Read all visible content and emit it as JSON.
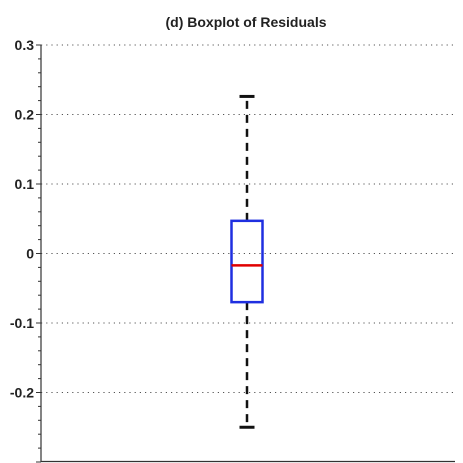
{
  "chart_data": {
    "type": "box",
    "title": "(d) Boxplot of Residuals",
    "xlabel": "",
    "ylabel": "",
    "ylim": [
      -0.3,
      0.3
    ],
    "yticks": [
      -0.2,
      -0.1,
      0,
      0.1,
      0.2,
      0.3
    ],
    "ytick_labels": [
      "-0.2",
      "-0.1",
      "0",
      "0.1",
      "0.2",
      "0.3"
    ],
    "grid": "horizontal-dotted",
    "box": {
      "whisker_low": -0.25,
      "q1": -0.07,
      "median": -0.017,
      "q3": 0.047,
      "whisker_high": 0.226
    },
    "colors": {
      "box": "#1f2fe0",
      "median": "#e00000",
      "whisker": "#111111",
      "grid": "#555555"
    }
  }
}
